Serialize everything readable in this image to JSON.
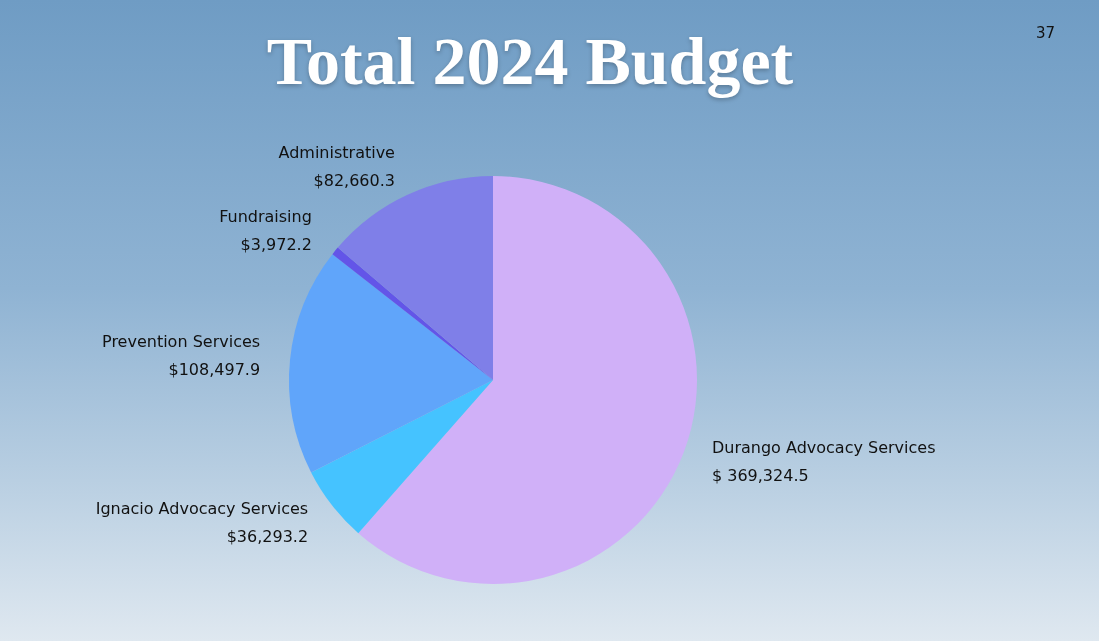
{
  "chart_data": {
    "type": "pie",
    "title": "Total 2024 Budget",
    "categories": [
      "Durango Advocacy Services",
      "Ignacio Advocacy Services",
      "Prevention Services",
      "Fundraising",
      "Administrative"
    ],
    "values": [
      369324.5,
      36293.2,
      108497.9,
      3972.2,
      82660.3
    ],
    "value_labels": [
      "$ 369,324.5",
      "$36,293.2",
      "$108,497.9",
      "$3,972.2",
      "$82,660.3"
    ],
    "colors": [
      "#d0b0f8",
      "#45c3ff",
      "#60a5fa",
      "#6355e8",
      "#7f7fe8"
    ],
    "annotations": [
      "37"
    ],
    "legend": false
  }
}
